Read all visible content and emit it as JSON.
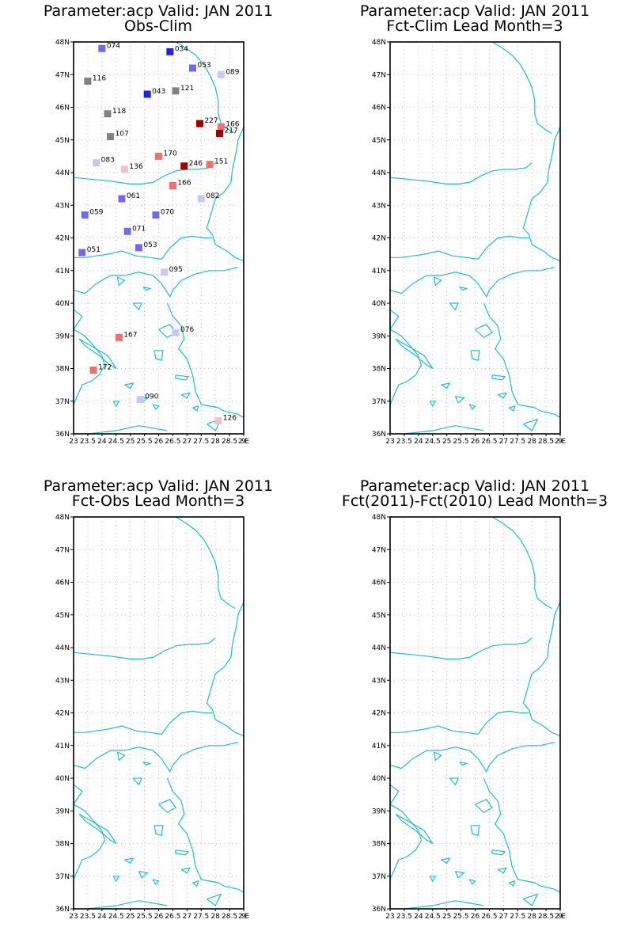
{
  "panels": [
    {
      "title_line1": "Parameter:acp Valid: JAN 2011",
      "title_line2": "Obs-Clim"
    },
    {
      "title_line1": "Parameter:acp Valid: JAN 2011",
      "title_line2": "Fct-Clim Lead Month=3"
    },
    {
      "title_line1": "Parameter:acp Valid: JAN 2011",
      "title_line2": "Fct-Obs Lead Month=3"
    },
    {
      "title_line1": "Parameter:acp Valid: JAN 2011",
      "title_line2": "Fct(2011)-Fct(2010) Lead Month=3"
    }
  ],
  "map": {
    "lat_labels": [
      "48N",
      "47N",
      "46N",
      "45N",
      "44N",
      "43N",
      "42N",
      "41N",
      "40N",
      "39N",
      "38N",
      "37N",
      "36N"
    ],
    "lat_values": [
      48,
      47,
      46,
      45,
      44,
      43,
      42,
      41,
      40,
      39,
      38,
      37,
      36
    ],
    "lon_labels": [
      "23",
      "23.5",
      "24",
      "24.5",
      "25",
      "25.5",
      "26",
      "26.5",
      "27",
      "27.5",
      "28",
      "28.5",
      "29E"
    ],
    "lon_values": [
      23,
      23.5,
      24,
      24.5,
      25,
      25.5,
      26,
      26.5,
      27,
      27.5,
      28,
      28.5,
      29
    ],
    "lon_range": [
      23,
      29
    ],
    "lat_range": [
      36,
      48
    ],
    "grid": true,
    "coast_color": "#20c0c0"
  },
  "stations": [
    {
      "label": "074",
      "lon": 24.0,
      "lat": 47.8,
      "color": "#6c6cf0"
    },
    {
      "label": "034",
      "lon": 26.4,
      "lat": 47.7,
      "color": "#2020e8"
    },
    {
      "label": "053",
      "lon": 27.2,
      "lat": 47.2,
      "color": "#6c6cf0"
    },
    {
      "label": "089",
      "lon": 28.2,
      "lat": 47.0,
      "color": "#c8c8f8"
    },
    {
      "label": "116",
      "lon": 23.5,
      "lat": 46.8,
      "color": "#808080"
    },
    {
      "label": "043",
      "lon": 25.6,
      "lat": 46.4,
      "color": "#2020e8"
    },
    {
      "label": "121",
      "lon": 26.6,
      "lat": 46.5,
      "color": "#808080"
    },
    {
      "label": "118",
      "lon": 24.2,
      "lat": 45.8,
      "color": "#808080"
    },
    {
      "label": "227",
      "lon": 27.45,
      "lat": 45.5,
      "color": "#a00000"
    },
    {
      "label": "166",
      "lon": 28.2,
      "lat": 45.4,
      "color": "#f07070"
    },
    {
      "label": "217",
      "lon": 28.15,
      "lat": 45.2,
      "color": "#a00000"
    },
    {
      "label": "107",
      "lon": 24.3,
      "lat": 45.1,
      "color": "#808080"
    },
    {
      "label": "170",
      "lon": 26.0,
      "lat": 44.5,
      "color": "#f07070"
    },
    {
      "label": "083",
      "lon": 23.8,
      "lat": 44.3,
      "color": "#c8c8f8"
    },
    {
      "label": "136",
      "lon": 24.8,
      "lat": 44.1,
      "color": "#f8c0c0"
    },
    {
      "label": "246",
      "lon": 26.9,
      "lat": 44.2,
      "color": "#a00000"
    },
    {
      "label": "151",
      "lon": 27.8,
      "lat": 44.25,
      "color": "#f07070"
    },
    {
      "label": "166",
      "lon": 26.5,
      "lat": 43.6,
      "color": "#f07070"
    },
    {
      "label": "061",
      "lon": 24.7,
      "lat": 43.2,
      "color": "#6c6cf0"
    },
    {
      "label": "082",
      "lon": 27.5,
      "lat": 43.2,
      "color": "#c8c8f8"
    },
    {
      "label": "059",
      "lon": 23.4,
      "lat": 42.7,
      "color": "#6c6cf0"
    },
    {
      "label": "070",
      "lon": 25.9,
      "lat": 42.7,
      "color": "#6c6cf0"
    },
    {
      "label": "071",
      "lon": 24.9,
      "lat": 42.2,
      "color": "#6c6cf0"
    },
    {
      "label": "053",
      "lon": 25.3,
      "lat": 41.7,
      "color": "#6c6cf0"
    },
    {
      "label": "051",
      "lon": 23.3,
      "lat": 41.55,
      "color": "#6c6cf0"
    },
    {
      "label": "095",
      "lon": 26.2,
      "lat": 40.95,
      "color": "#c8c8f8"
    },
    {
      "label": "076",
      "lon": 26.6,
      "lat": 39.1,
      "color": "#c8c8f8"
    },
    {
      "label": "167",
      "lon": 24.6,
      "lat": 38.95,
      "color": "#f07070"
    },
    {
      "label": "172",
      "lon": 23.7,
      "lat": 37.95,
      "color": "#f07070"
    },
    {
      "label": "090",
      "lon": 25.35,
      "lat": 37.05,
      "color": "#c8c8f8"
    },
    {
      "label": "126",
      "lon": 28.1,
      "lat": 36.4,
      "color": "#f8c0c0"
    }
  ]
}
